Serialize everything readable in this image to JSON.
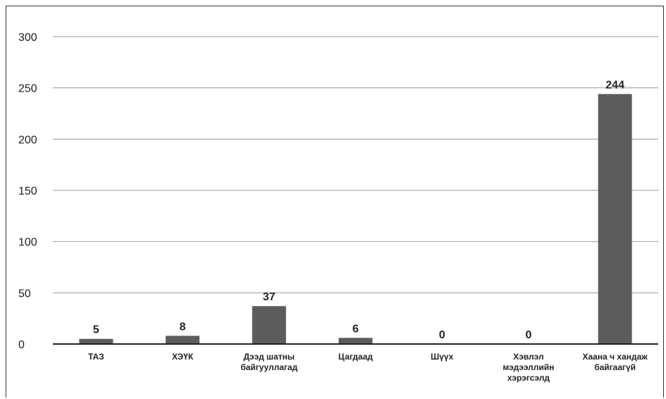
{
  "chart_data": {
    "type": "bar",
    "categories": [
      [
        "ТАЗ"
      ],
      [
        "ХЭҮК"
      ],
      [
        "Дээд шатны",
        "байгууллагад"
      ],
      [
        "Цагдаад"
      ],
      [
        "Шүүх"
      ],
      [
        "Хэвлэл",
        "мэдээллийн",
        "хэрэгсэлд"
      ],
      [
        "Хаана ч хандаж",
        "байгаагүй"
      ]
    ],
    "values": [
      5,
      8,
      37,
      6,
      0,
      0,
      244
    ],
    "data_labels": [
      "5",
      "8",
      "37",
      "6",
      "0",
      "0",
      "244"
    ],
    "yticks": [
      "0",
      "50",
      "100",
      "150",
      "200",
      "250",
      "300"
    ],
    "ylim": [
      0,
      300
    ],
    "grid": true,
    "title": "",
    "xlabel": "",
    "ylabel": "",
    "colors": {
      "bar": "#5c5c5c",
      "grid": "#9a9a9a",
      "axis": "#222222",
      "text": "#222222"
    }
  }
}
